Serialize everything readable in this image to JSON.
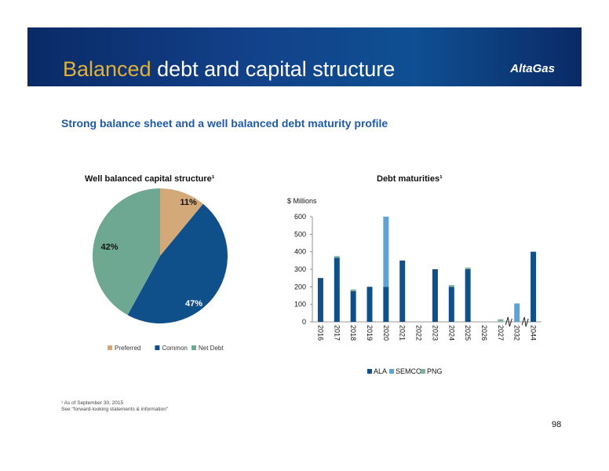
{
  "header": {
    "title_accent": "Balanced",
    "title_rest": " debt and capital structure",
    "logo": "AltaGas"
  },
  "subtitle": "Strong balance sheet and a well balanced debt maturity profile",
  "footnote": {
    "line1": "¹  As of September 30, 2015",
    "line2": "   See \"forward-looking statements & information\""
  },
  "page_number": "98",
  "chart_data": [
    {
      "type": "pie",
      "title": "Well balanced capital structure¹",
      "slices": [
        {
          "label": "Preferred",
          "value": 11,
          "display": "11%",
          "color": "#d4a97a"
        },
        {
          "label": "Common",
          "value": 47,
          "display": "47%",
          "color": "#0f4f8a"
        },
        {
          "label": "Net Debt",
          "value": 42,
          "display": "42%",
          "color": "#6fa892"
        }
      ],
      "legend_position": "bottom"
    },
    {
      "type": "bar",
      "stacked": true,
      "title": "Debt maturities¹",
      "ylabel": "$ Millions",
      "ylim": [
        0,
        600
      ],
      "yticks": [
        0,
        100,
        200,
        300,
        400,
        500,
        600
      ],
      "categories": [
        "2016",
        "2017",
        "2018",
        "2019",
        "2020",
        "2021",
        "2022",
        "2023",
        "2024",
        "2025",
        "2026",
        "2027",
        "2032",
        "2044"
      ],
      "series": [
        {
          "name": "ALA",
          "color": "#0f4f8a",
          "values": [
            250,
            365,
            175,
            200,
            200,
            350,
            0,
            300,
            200,
            300,
            0,
            0,
            0,
            400
          ]
        },
        {
          "name": "SEMCO",
          "color": "#5ea2d6",
          "values": [
            0,
            0,
            0,
            0,
            400,
            0,
            0,
            0,
            0,
            0,
            0,
            0,
            105,
            0
          ]
        },
        {
          "name": "PNG",
          "color": "#7fb19a",
          "values": [
            0,
            10,
            10,
            0,
            0,
            0,
            0,
            0,
            10,
            10,
            0,
            15,
            0,
            0
          ]
        }
      ],
      "legend_position": "bottom",
      "axis_breaks": [
        "2027-2032",
        "2032-2044"
      ]
    }
  ]
}
